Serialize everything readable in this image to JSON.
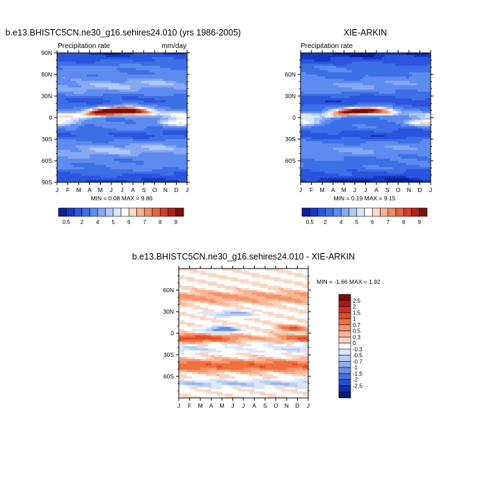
{
  "chart_data": [
    {
      "id": "model",
      "type": "heatmap",
      "title": "b.e13.BHISTC5CN.ne30_g16.sehires24.010 (yrs 1986-2005)",
      "left_string": "Precipitation rate",
      "right_string": "mm/day",
      "x_ticks": [
        "J",
        "F",
        "M",
        "A",
        "M",
        "J",
        "J",
        "A",
        "S",
        "O",
        "N",
        "D",
        "J"
      ],
      "y_ticks": [
        "90N",
        "60N",
        "30N",
        "0",
        "30S",
        "60S",
        "90S"
      ],
      "ylim": [
        -90,
        90
      ],
      "stats": "MIN =   0.08 MAX =    9.86",
      "field": {
        "itcz_peak": 9.86,
        "itcz_min_intensity": 4.5,
        "background": 3.2
      }
    },
    {
      "id": "obs",
      "type": "heatmap",
      "title": "XIE-ARKIN",
      "left_string": "Precipitation rate",
      "right_string": "",
      "x_ticks": [
        "J",
        "F",
        "M",
        "A",
        "M",
        "J",
        "J",
        "A",
        "S",
        "O",
        "N",
        "D",
        "J"
      ],
      "y_ticks": [
        "60N",
        "30N",
        "0",
        "30S",
        "60S"
      ],
      "ylim": [
        -90,
        90
      ],
      "stats": "MIN =   0.19 MAX =    9.15",
      "field": {
        "itcz_peak": 9.15,
        "itcz_min_intensity": 4.2,
        "background": 3.0
      }
    },
    {
      "id": "diff",
      "type": "heatmap",
      "title": "b.e13.BHISTC5CN.ne30_g16.sehires24.010 - XIE-ARKIN",
      "x_ticks": [
        "J",
        "F",
        "M",
        "A",
        "M",
        "J",
        "J",
        "A",
        "S",
        "O",
        "N",
        "D",
        "J"
      ],
      "y_ticks": [
        "60N",
        "30N",
        "0",
        "30S",
        "60S"
      ],
      "ylim": [
        -90,
        90
      ],
      "stats": "MIN =  -1.66 MAX =    1.92"
    }
  ],
  "colorbars": {
    "abs": {
      "labels": [
        "0.5",
        "2",
        "4",
        "5",
        "6",
        "7",
        "8",
        "9"
      ],
      "levels": [
        0.5,
        1,
        2,
        3,
        4,
        4.5,
        5,
        5.5,
        6,
        6.5,
        7,
        7.5,
        8,
        8.5,
        9
      ],
      "colors": [
        "#0A1F96",
        "#1538C4",
        "#2A55DD",
        "#3D6FE6",
        "#5E8BEF",
        "#86A9F3",
        "#B2C8F7",
        "#DCE6FA",
        "#FFFFFF",
        "#FCD9C8",
        "#F7B194",
        "#F08A67",
        "#E66445",
        "#D43F2A",
        "#B0221A",
        "#7A0F0C"
      ]
    },
    "diff": {
      "labels": [
        "2.5",
        "2",
        "1.5",
        "1",
        "0.7",
        "0.5",
        "0.3",
        "0",
        "-0.3",
        "-0.5",
        "-0.7",
        "-1",
        "-1.5",
        "-2",
        "-2.5"
      ],
      "colors": [
        "#7A0D0D",
        "#A81A14",
        "#CE2F1E",
        "#E54B2A",
        "#F0703F",
        "#F6946A",
        "#F9B595",
        "#FCD6C2",
        "#FFFFFF",
        "#DCE6FA",
        "#B8CDF6",
        "#93B1F0",
        "#6B8FE8",
        "#4670DF",
        "#2450CF",
        "#1233AD",
        "#09197E"
      ]
    }
  }
}
